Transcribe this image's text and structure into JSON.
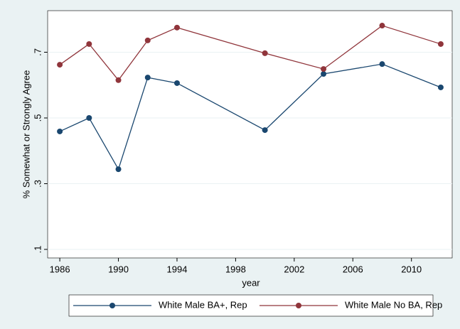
{
  "chart_data": {
    "type": "line",
    "x_label": "year",
    "y_label": "% Somewhat or Strongly Agree",
    "x": [
      1986,
      1988,
      1990,
      1992,
      1994,
      2000,
      2004,
      2008,
      2012
    ],
    "series": [
      {
        "name": "White Male BA+, Rep",
        "color": "#1a476f",
        "values": [
          0.459,
          0.5,
          0.344,
          0.623,
          0.606,
          0.463,
          0.634,
          0.664,
          0.593
        ]
      },
      {
        "name": "White Male No BA, Rep",
        "color": "#90353b",
        "values": [
          0.662,
          0.725,
          0.615,
          0.736,
          0.775,
          0.697,
          0.649,
          0.781,
          0.725
        ]
      }
    ],
    "xlim": [
      1985.17,
      2012.78
    ],
    "xticks": [
      1986,
      1990,
      1994,
      1998,
      2002,
      2006,
      2010
    ],
    "ylim": [
      0.074,
      0.8265
    ],
    "yticks": [
      {
        "value": 0.1,
        "label": ".1"
      },
      {
        "value": 0.3,
        "label": ".3"
      },
      {
        "value": 0.5,
        "label": ".5"
      },
      {
        "value": 0.7,
        "label": ".7"
      }
    ],
    "grid": true
  }
}
